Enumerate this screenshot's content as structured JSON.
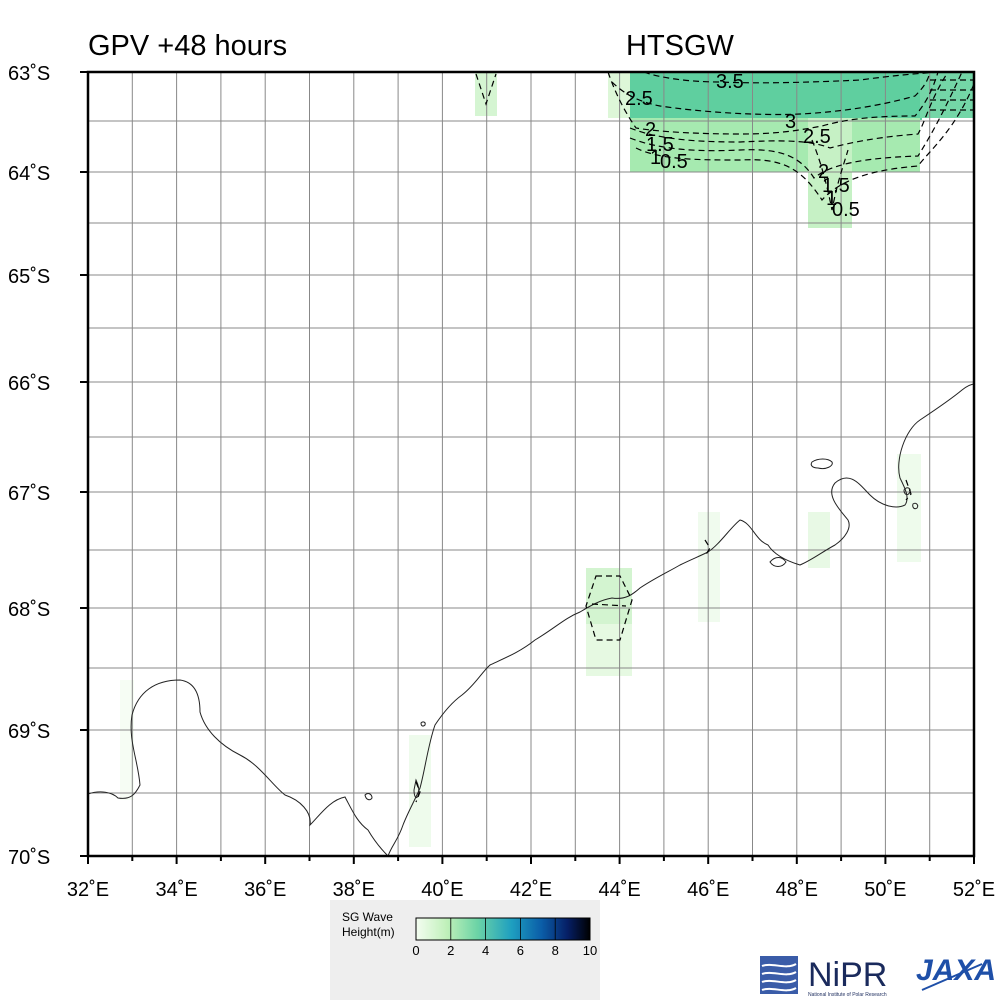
{
  "header": {
    "left_title": "GPV +48 hours",
    "right_title": "HTSGW"
  },
  "map": {
    "lat_labels": [
      "63˚S",
      "64˚S",
      "65˚S",
      "66˚S",
      "67˚S",
      "68˚S",
      "69˚S",
      "70˚S"
    ],
    "lon_labels": [
      "32˚E",
      "34˚E",
      "36˚E",
      "38˚E",
      "40˚E",
      "42˚E",
      "44˚E",
      "46˚E",
      "48˚E",
      "50˚E",
      "52˚E"
    ],
    "lat_range": [
      -70,
      -63
    ],
    "lon_range": [
      32,
      52
    ],
    "contour_labels": [
      "3.5",
      "2.5",
      "3",
      "2.5",
      "2",
      "1.5",
      "1",
      "0.5",
      "2",
      "1.5",
      "1",
      "0.5"
    ],
    "colors": {
      "wave_low": "#eefbe9",
      "wave_mid": "#9fe8a8",
      "wave_high": "#5fcf9f"
    }
  },
  "legend": {
    "title_line1": "SG Wave",
    "title_line2": "Height(m)",
    "ticks": [
      "0",
      "2",
      "4",
      "6",
      "8",
      "10"
    ],
    "range": [
      0,
      10
    ]
  },
  "logos": {
    "nipr_name": "NiPR",
    "nipr_sub": "National Institute of Polar Research",
    "jaxa_name": "JAXA"
  }
}
